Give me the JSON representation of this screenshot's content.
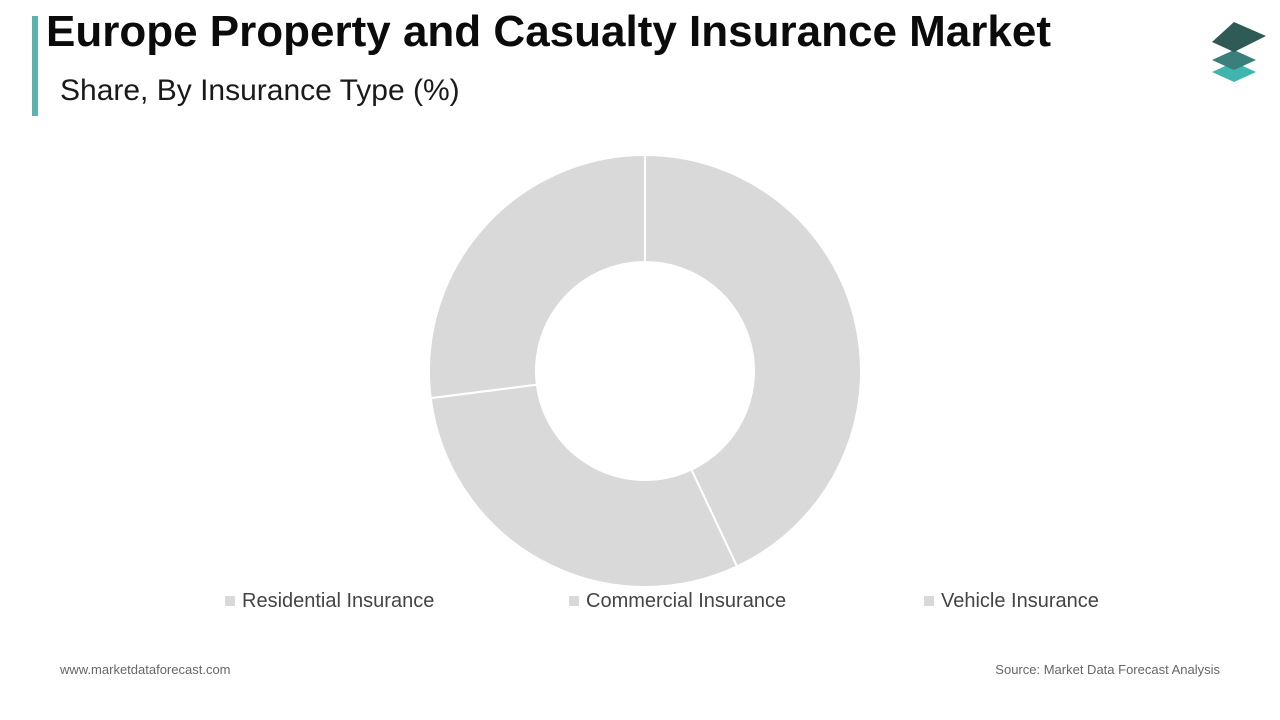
{
  "header": {
    "title": "Europe Property and Casualty Insurance Market",
    "subtitle": "Share, By Insurance Type (%)",
    "accent_color": "#5ab3b0",
    "logo_icon": "stacked-layers-icon"
  },
  "chart_data": {
    "type": "pie",
    "subtype": "donut",
    "title": "Europe Property and Casualty Insurance Market",
    "subtitle": "Share, By Insurance Type (%)",
    "categories": [
      "Residential Insurance",
      "Commercial Insurance",
      "Vehicle Insurance"
    ],
    "values": [
      43,
      30,
      27
    ],
    "colors": [
      "#d9d9d9",
      "#d9d9d9",
      "#d9d9d9"
    ],
    "slice_order": "clockwise from top",
    "legend_position": "bottom",
    "data_labels_shown": false
  },
  "footer": {
    "website": "www.marketdataforecast.com",
    "source": "Source: Market Data Forecast Analysis"
  }
}
